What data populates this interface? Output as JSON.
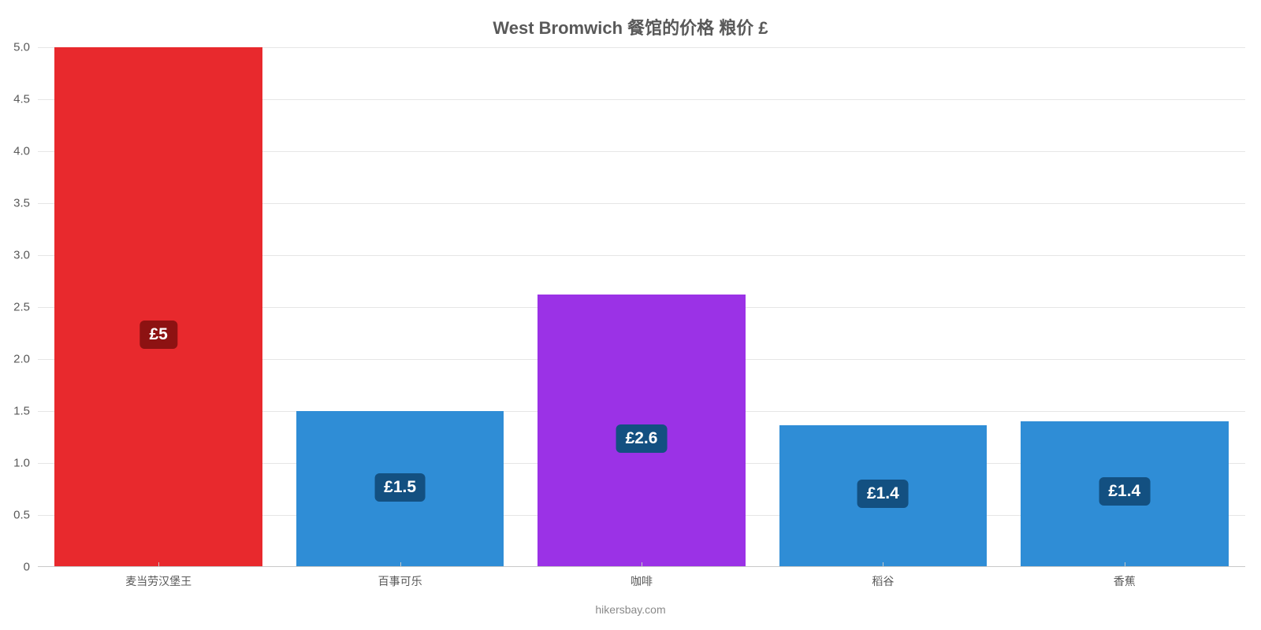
{
  "chart": {
    "type": "bar",
    "title": "West Bromwich 餐馆的价格 粮价 £",
    "title_fontsize": 22,
    "title_color": "#595959",
    "background_color": "#ffffff",
    "grid_color": "#e6e6e6",
    "axis_color": "#c8c8c8",
    "tick_color": "#595959",
    "tick_fontsize": 15,
    "xtick_fontsize": 14,
    "credit_fontsize": 14,
    "credit_color": "#8a8a8a",
    "bar_width": 0.86,
    "ylim": [
      0,
      5.0
    ],
    "ytick_step": 0.5,
    "yticks": [
      "0",
      "0.5",
      "1.0",
      "1.5",
      "2.0",
      "2.5",
      "3.0",
      "3.5",
      "4.0",
      "4.5",
      "5.0"
    ],
    "categories": [
      "麦当劳汉堡王",
      "百事可乐",
      "咖啡",
      "稻谷",
      "香蕉"
    ],
    "values": [
      5.0,
      1.5,
      2.62,
      1.36,
      1.4
    ],
    "value_labels": [
      "£5",
      "£1.5",
      "£2.6",
      "£1.4",
      "£1.4"
    ],
    "bar_colors": [
      "#e8292d",
      "#2f8dd6",
      "#9b32e6",
      "#2f8dd6",
      "#2f8dd6"
    ],
    "badge_colors": [
      "#8d1212",
      "#135081",
      "#135081",
      "#135081",
      "#135081"
    ],
    "badge_fontsize": 21,
    "credit": "hikersbay.com"
  }
}
